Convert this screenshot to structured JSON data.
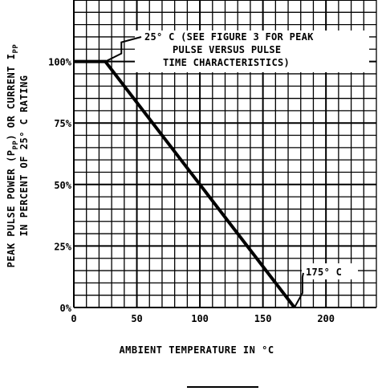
{
  "chart_data": {
    "type": "line",
    "title": "",
    "xlabel": "AMBIENT TEMPERATURE IN °C",
    "ylabel_line1": "PEAK PULSE POWER (P",
    "ylabel_sub1": "PP",
    "ylabel_mid": ") OR CURRENT I",
    "ylabel_sub2": "PP",
    "ylabel_line2": "IN PERCENT OF 25° C RATING",
    "xlim": [
      0,
      240
    ],
    "ylim": [
      0,
      125
    ],
    "x_ticks": [
      0,
      50,
      100,
      150,
      200
    ],
    "x_tick_labels": [
      "0",
      "50",
      "100",
      "150",
      "200"
    ],
    "y_ticks": [
      0,
      25,
      50,
      75,
      100
    ],
    "y_tick_labels": [
      "0%",
      "25%",
      "50%",
      "75%",
      "100%"
    ],
    "grid": true,
    "series": [
      {
        "x": [
          0,
          25,
          175
        ],
        "y": [
          100,
          100,
          0
        ]
      }
    ],
    "annotations": [
      {
        "lines": [
          "25° C (SEE FIGURE 3 FOR PEAK",
          "PULSE VERSUS PULSE",
          "TIME CHARACTERISTICS)"
        ],
        "point": [
          25,
          100
        ]
      },
      {
        "lines": [
          "175° C"
        ],
        "point": [
          175,
          0
        ]
      }
    ]
  }
}
